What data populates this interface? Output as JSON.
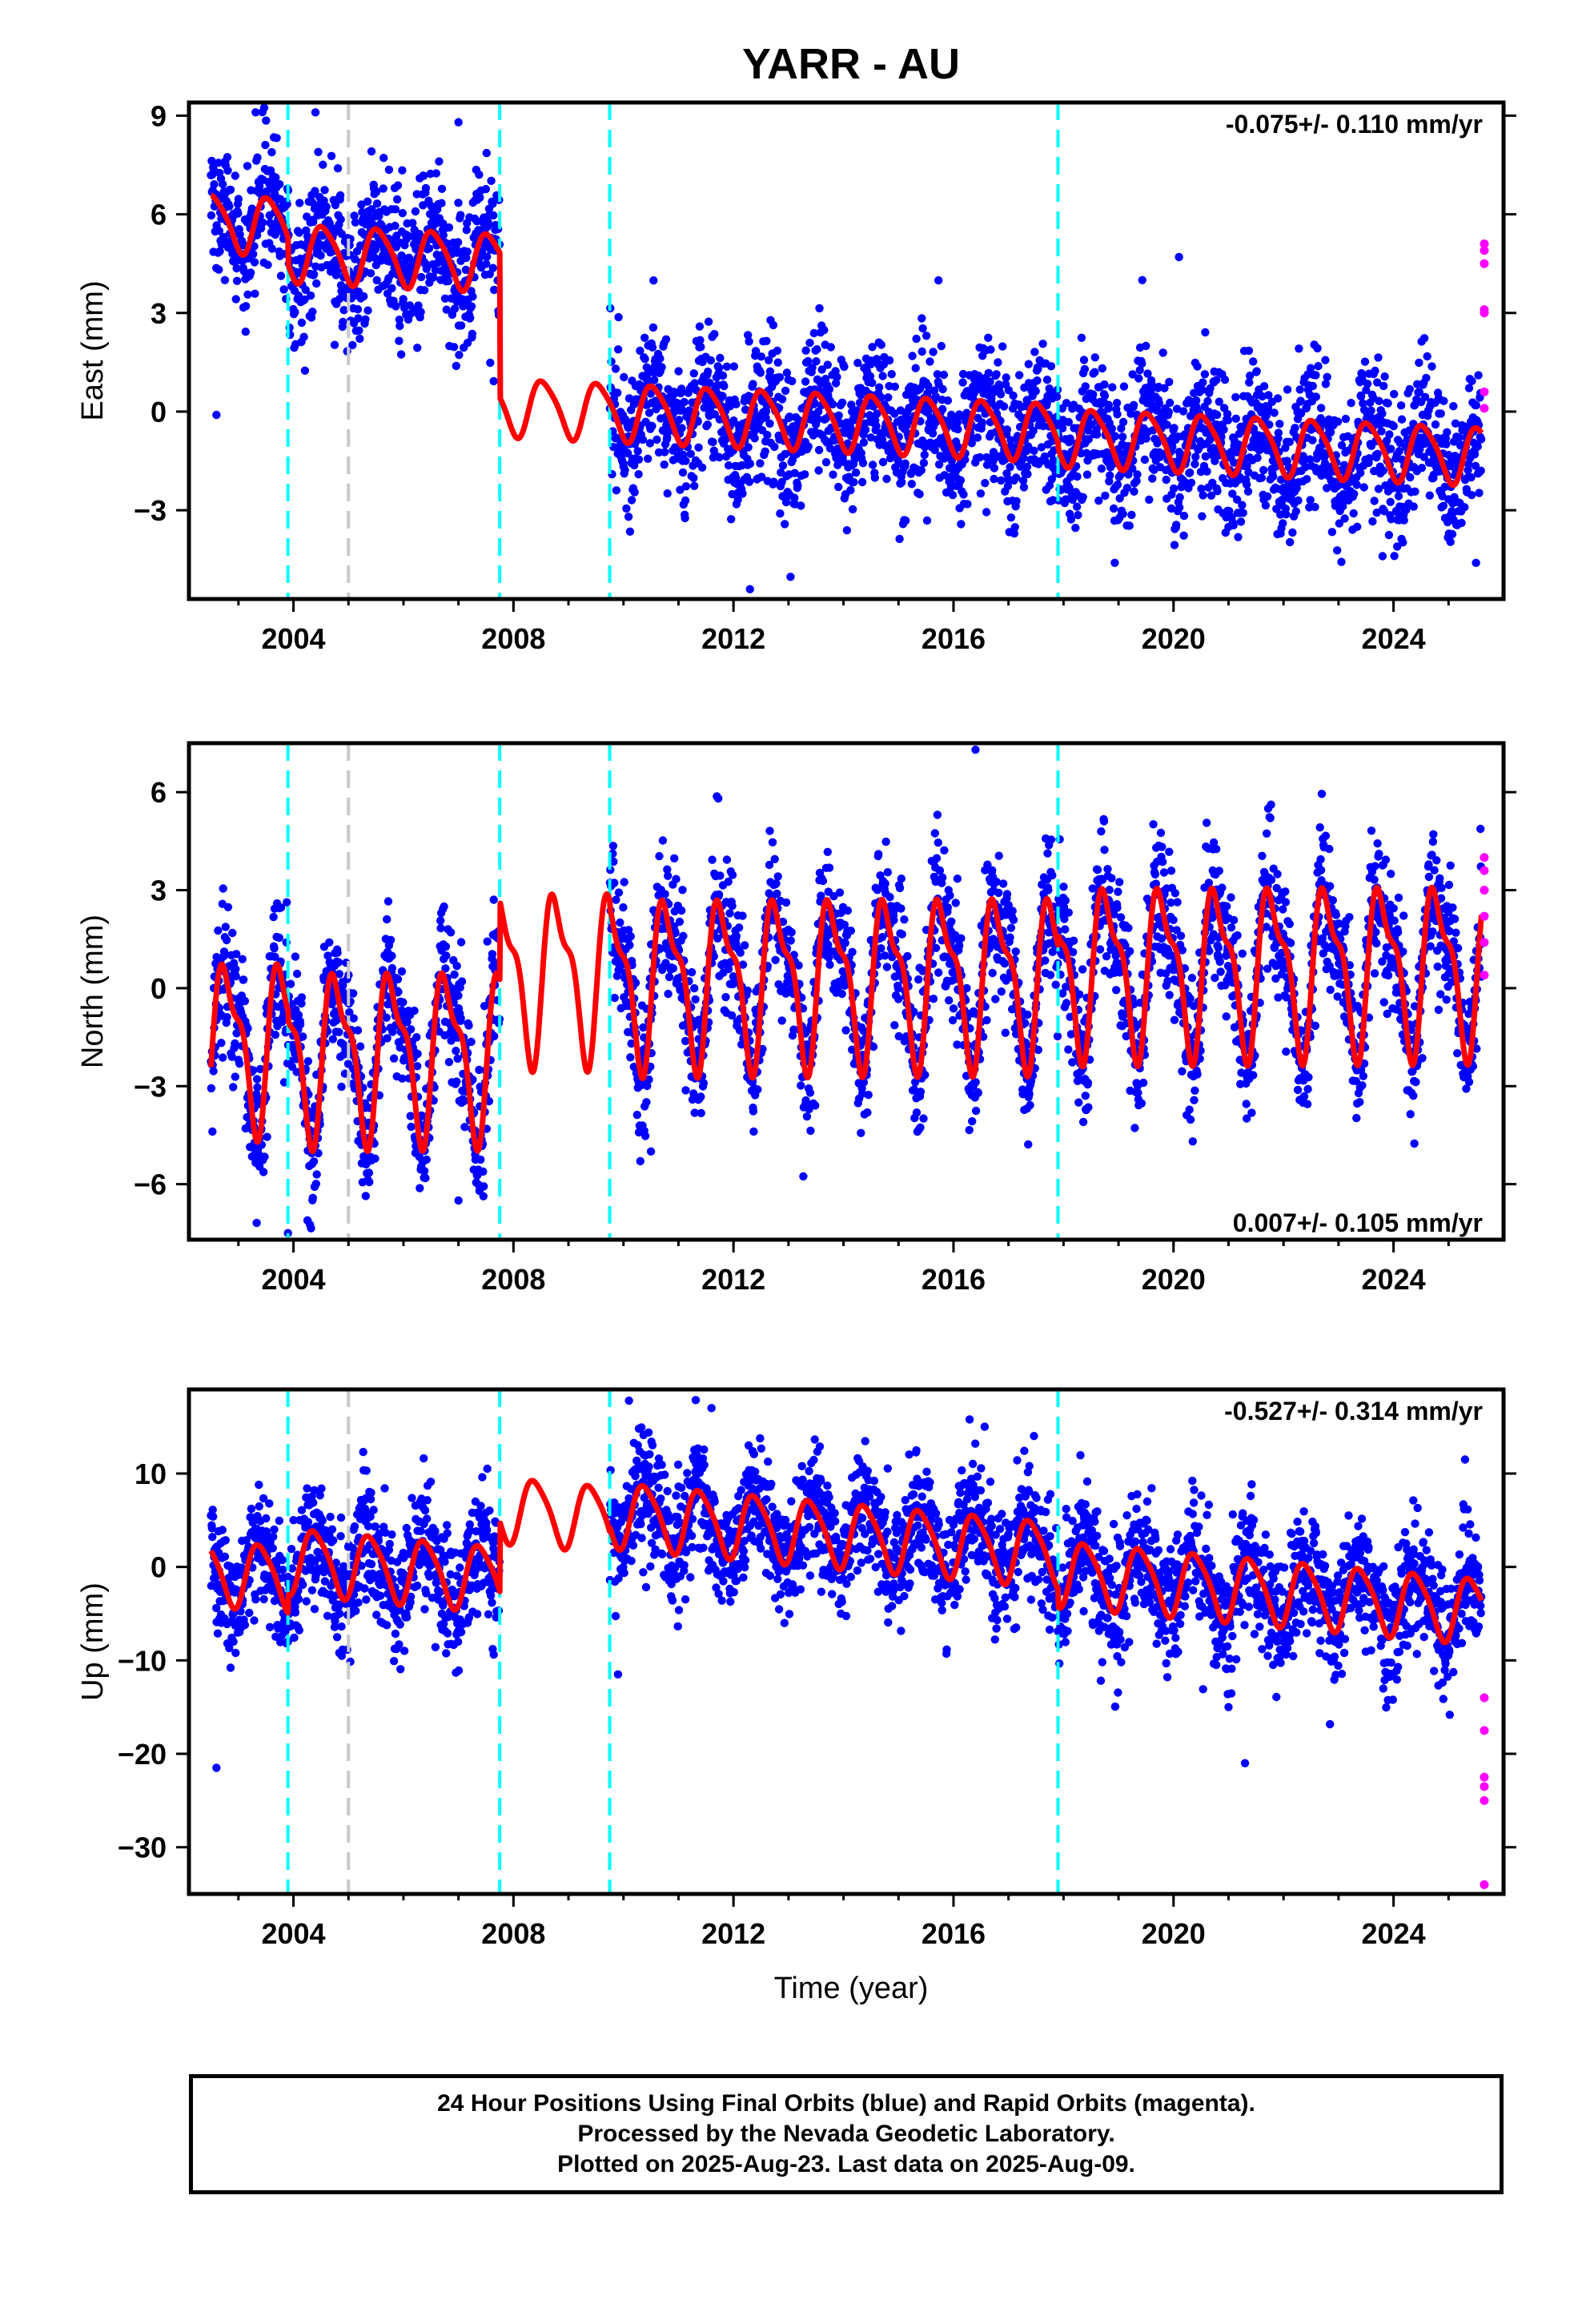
{
  "title": "YARR - AU",
  "xlabel": "Time (year)",
  "footer": {
    "line1": "24 Hour Positions Using Final Orbits (blue) and Rapid Orbits (magenta).",
    "line2": "Processed by the Nevada Geodetic Laboratory.",
    "line3": "Plotted on 2025-Aug-23. Last data on 2025-Aug-09."
  },
  "colors": {
    "final_orbits": "#0000ff",
    "rapid_orbits": "#ff00ff",
    "model_fit": "#ff0000",
    "equipment_change": "#00ffff",
    "other_event": "#c8c8c8"
  },
  "x_ticks": [
    "2004",
    "2008",
    "2012",
    "2016",
    "2020",
    "2024"
  ],
  "x_tick_values": [
    2004,
    2008,
    2012,
    2016,
    2020,
    2024
  ],
  "chart_data": [
    {
      "type": "scatter",
      "component": "east",
      "ylabel": "East (mm)",
      "rate_label": "-0.075+/- 0.110 mm/yr",
      "xlim": [
        2002.1,
        2026.0
      ],
      "ylim": [
        -5.7,
        9.4
      ],
      "y_ticks": [
        -3,
        0,
        3,
        6,
        9
      ],
      "y_tick_labels": [
        "−3",
        "0",
        "3",
        "6",
        "9"
      ],
      "grid": false,
      "data_start": 2002.5,
      "data_end": 2025.6,
      "gap": [
        2007.75,
        2009.75
      ],
      "equipment_changes": [
        2003.9,
        2007.75,
        2009.75,
        2017.9
      ],
      "other_events": [
        2005.0
      ],
      "model": {
        "segments": [
          {
            "from": 2002.5,
            "to": 2003.9,
            "offset": 4.9
          },
          {
            "from": 2003.9,
            "to": 2007.75,
            "offset": 4.1
          },
          {
            "from": 2007.75,
            "to": 2009.75,
            "offset": -0.3
          },
          {
            "from": 2009.75,
            "to": 2017.9,
            "offset": -0.3
          },
          {
            "from": 2017.9,
            "to": 2025.6,
            "offset": -0.45
          }
        ],
        "annual_amplitude": 0.85,
        "annual_phase_year": 0.3,
        "semiannual_amplitude": 0.15,
        "trend_mm_per_yr": -0.075
      },
      "scatter_std": 1.1,
      "rapid_points": [
        {
          "x": 2025.65,
          "y": 5.1
        },
        {
          "x": 2025.65,
          "y": 4.9
        },
        {
          "x": 2025.65,
          "y": 4.5
        },
        {
          "x": 2025.65,
          "y": 3.1
        },
        {
          "x": 2025.65,
          "y": 3.0
        },
        {
          "x": 2025.65,
          "y": 0.6
        },
        {
          "x": 2025.65,
          "y": 0.1
        }
      ],
      "outliers": [
        {
          "x": 2004.4,
          "y": 9.1
        },
        {
          "x": 2007.0,
          "y": 8.8
        },
        {
          "x": 2002.6,
          "y": -0.1
        },
        {
          "x": 2012.3,
          "y": -5.4
        },
        {
          "x": 2020.1,
          "y": 4.7
        },
        {
          "x": 2024.1,
          "y": -3.3
        },
        {
          "x": 2025.5,
          "y": -4.6
        }
      ]
    },
    {
      "type": "scatter",
      "component": "north",
      "ylabel": "North (mm)",
      "rate_label": "0.007+/- 0.105 mm/yr",
      "xlim": [
        2002.1,
        2026.0
      ],
      "ylim": [
        -7.7,
        7.5
      ],
      "y_ticks": [
        -6,
        -3,
        0,
        3,
        6
      ],
      "y_tick_labels": [
        "−6",
        "−3",
        "0",
        "3",
        "6"
      ],
      "grid": false,
      "data_start": 2002.5,
      "data_end": 2025.6,
      "gap": [
        2007.75,
        2009.75
      ],
      "equipment_changes": [
        2003.9,
        2007.75,
        2009.75,
        2017.9
      ],
      "other_events": [
        2005.0
      ],
      "model": {
        "segments": [
          {
            "from": 2002.5,
            "to": 2003.9,
            "offset": -1.6
          },
          {
            "from": 2003.9,
            "to": 2007.75,
            "offset": -1.9
          },
          {
            "from": 2007.75,
            "to": 2009.75,
            "offset": 0.5
          },
          {
            "from": 2009.75,
            "to": 2017.9,
            "offset": 0.3
          },
          {
            "from": 2017.9,
            "to": 2025.6,
            "offset": 0.6
          }
        ],
        "annual_amplitude": 2.3,
        "annual_phase_year": 0.55,
        "semiannual_amplitude": 0.9,
        "trend_mm_per_yr": 0.007
      },
      "scatter_std": 1.05,
      "rapid_points": [
        {
          "x": 2025.65,
          "y": 4.0
        },
        {
          "x": 2025.65,
          "y": 3.6
        },
        {
          "x": 2025.65,
          "y": 3.0
        },
        {
          "x": 2025.65,
          "y": 2.2
        },
        {
          "x": 2025.65,
          "y": 1.4
        },
        {
          "x": 2025.65,
          "y": 0.4
        }
      ],
      "outliers": [
        {
          "x": 2003.9,
          "y": -7.5
        },
        {
          "x": 2016.4,
          "y": 7.3
        },
        {
          "x": 2010.5,
          "y": -5.0
        },
        {
          "x": 2007.0,
          "y": -6.5
        }
      ]
    },
    {
      "type": "scatter",
      "component": "up",
      "ylabel": "Up (mm)",
      "rate_label": "-0.527+/- 0.314 mm/yr",
      "xlim": [
        2002.1,
        2026.0
      ],
      "ylim": [
        -35.0,
        19.0
      ],
      "y_ticks": [
        -30,
        -20,
        -10,
        0,
        10
      ],
      "y_tick_labels": [
        "−30",
        "−20",
        "−10",
        "0",
        "10"
      ],
      "grid": false,
      "data_start": 2002.5,
      "data_end": 2025.6,
      "gap": [
        2007.75,
        2009.75
      ],
      "equipment_changes": [
        2003.9,
        2007.75,
        2009.75,
        2017.9
      ],
      "other_events": [
        2005.0
      ],
      "model": {
        "segments": [
          {
            "from": 2002.5,
            "to": 2003.9,
            "offset": -6.5
          },
          {
            "from": 2003.9,
            "to": 2007.75,
            "offset": -4.5
          },
          {
            "from": 2007.75,
            "to": 2009.75,
            "offset": 3.0
          },
          {
            "from": 2009.75,
            "to": 2017.9,
            "offset": 3.5
          },
          {
            "from": 2017.9,
            "to": 2025.6,
            "offset": 1.5
          }
        ],
        "annual_amplitude": 3.4,
        "annual_phase_year": 0.15,
        "semiannual_amplitude": 0.6,
        "trend_mm_per_yr": -0.527
      },
      "scatter_std": 3.3,
      "rapid_points": [
        {
          "x": 2025.65,
          "y": -14.0
        },
        {
          "x": 2025.65,
          "y": -17.5
        },
        {
          "x": 2025.65,
          "y": -22.5
        },
        {
          "x": 2025.65,
          "y": -23.5
        },
        {
          "x": 2025.65,
          "y": -25.0
        },
        {
          "x": 2025.65,
          "y": -34.0
        }
      ],
      "outliers": [
        {
          "x": 2002.6,
          "y": -21.5
        },
        {
          "x": 2010.1,
          "y": 17.8
        },
        {
          "x": 2011.6,
          "y": 17.0
        },
        {
          "x": 2021.3,
          "y": -21.0
        },
        {
          "x": 2009.9,
          "y": -11.5
        },
        {
          "x": 2021.0,
          "y": -15.0
        },
        {
          "x": 2025.3,
          "y": 11.5
        }
      ]
    }
  ]
}
